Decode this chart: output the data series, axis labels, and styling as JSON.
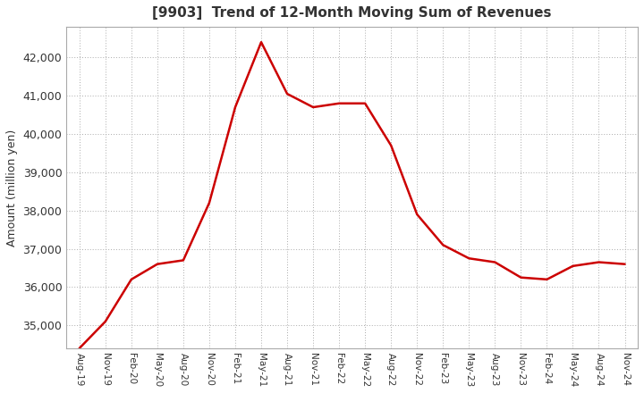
{
  "title": "[9903]  Trend of 12-Month Moving Sum of Revenues",
  "ylabel": "Amount (million yen)",
  "line_color": "#CC0000",
  "background_color": "#FFFFFF",
  "plot_bg_color": "#FFFFFF",
  "grid_color": "#AAAAAA",
  "title_color": "#333333",
  "tick_color": "#333333",
  "ylim": [
    34400,
    42800
  ],
  "yticks": [
    35000,
    36000,
    37000,
    38000,
    39000,
    40000,
    41000,
    42000
  ],
  "x_labels": [
    "Aug-19",
    "Nov-19",
    "Feb-20",
    "May-20",
    "Aug-20",
    "Nov-20",
    "Feb-21",
    "May-21",
    "Aug-21",
    "Nov-21",
    "Feb-22",
    "May-22",
    "Aug-22",
    "Nov-22",
    "Feb-23",
    "May-23",
    "Aug-23",
    "Nov-23",
    "Feb-24",
    "May-24",
    "Aug-24",
    "Nov-24"
  ],
  "values": [
    34400,
    35100,
    36200,
    36600,
    36700,
    38200,
    40700,
    42400,
    41050,
    40700,
    40800,
    40800,
    39700,
    37900,
    37100,
    36750,
    36650,
    36250,
    36200,
    36550,
    36650,
    36600
  ]
}
